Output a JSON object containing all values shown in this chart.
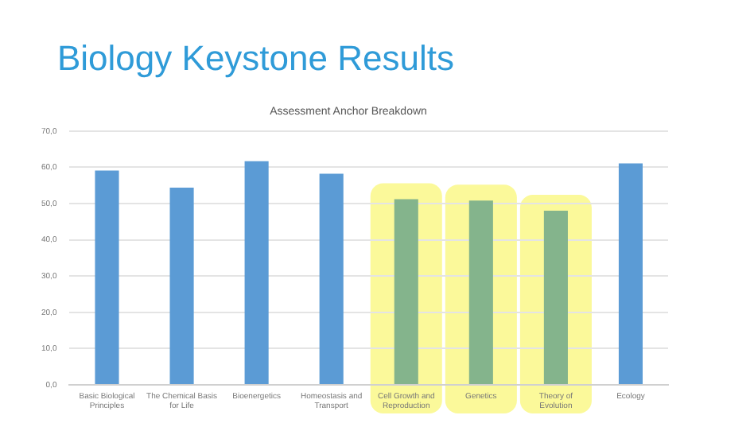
{
  "chart_data": {
    "type": "bar",
    "title": "Biology Keystone Results",
    "subtitle": "Assessment Anchor Breakdown",
    "categories": [
      "Basic Biological Principles",
      "The Chemical Basis for Life",
      "Bioenergetics",
      "Homeostasis and Transport",
      "Cell Growth and Reproduction",
      "Genetics",
      "Theory of Evolution",
      "Ecology"
    ],
    "values": [
      59.1,
      54.4,
      61.7,
      58.2,
      51.2,
      50.8,
      48.0,
      61.1
    ],
    "colors": [
      "#5b9bd5",
      "#5b9bd5",
      "#5b9bd5",
      "#5b9bd5",
      "#84b48c",
      "#84b48c",
      "#84b48c",
      "#5b9bd5"
    ],
    "ylim": [
      0,
      70
    ],
    "yticks": [
      {
        "value": 0,
        "label": "0,0"
      },
      {
        "value": 10,
        "label": "10,0"
      },
      {
        "value": 20,
        "label": "20,0"
      },
      {
        "value": 30,
        "label": "30,0"
      },
      {
        "value": 40,
        "label": "40,0"
      },
      {
        "value": 50,
        "label": "50,0"
      },
      {
        "value": 60,
        "label": "60,0"
      },
      {
        "value": 70,
        "label": "70,0"
      }
    ],
    "bands": [
      {
        "axis": "x",
        "from": "Cell Growth and Reproduction",
        "to": "Cell Growth and Reproduction",
        "color": "#fbf99a"
      },
      {
        "axis": "x",
        "from": "Genetics",
        "to": "Genetics",
        "color": "#fbf99a"
      },
      {
        "axis": "x",
        "from": "Theory of Evolution",
        "to": "Theory of Evolution",
        "color": "#fbf99a"
      }
    ],
    "grid": "y",
    "legend": false
  }
}
